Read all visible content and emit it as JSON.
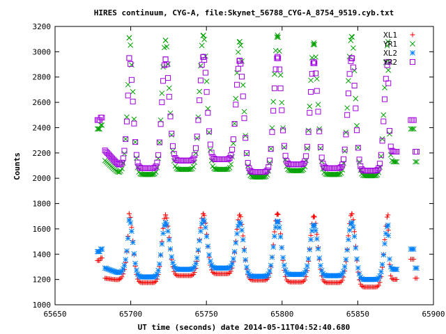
{
  "chart_data": {
    "type": "scatter",
    "title": "HIRES continuum, CYG-A, file:Skynet_56788_CYG-A_8754_9519.cyb.txt",
    "xlabel": "UT time (seconds) date 2014-05-11T04:52:40.680",
    "ylabel": "Counts",
    "xlim": [
      65650,
      65900
    ],
    "ylim": [
      1000,
      3200
    ],
    "xticks": [
      65650,
      65700,
      65750,
      65800,
      65850,
      65900
    ],
    "yticks": [
      1000,
      1200,
      1400,
      1600,
      1800,
      2000,
      2200,
      2400,
      2600,
      2800,
      3000,
      3200
    ],
    "grid": false,
    "legend_position": "top-right",
    "scan_x_range": [
      65683,
      65876
    ],
    "scan_peaks_x": [
      65699,
      65723,
      65748,
      65772,
      65797,
      65821,
      65846,
      65870
    ],
    "cal_before_x": [
      65678,
      65681
    ],
    "cal_after_x": [
      65885,
      65889
    ],
    "series": [
      {
        "name": "XL1",
        "color": "#ff0000",
        "marker": "plus",
        "peaks": [
          1720,
          1710,
          1720,
          1710,
          1720,
          1700,
          1720,
          1710
        ],
        "troughs": [
          1190,
          1175,
          1230,
          1245,
          1195,
          1180,
          1175,
          1140
        ],
        "scan_start": 1210,
        "scan_end": 1200,
        "cal_before": [
          1350,
          1370
        ],
        "cal_after": [
          1360,
          1210
        ]
      },
      {
        "name": "YR1",
        "color": "#00a000",
        "marker": "cross",
        "peaks": [
          3110,
          3090,
          3130,
          3080,
          3130,
          3070,
          3120,
          3080
        ],
        "troughs": [
          2010,
          2030,
          2070,
          2070,
          2010,
          2060,
          2030,
          2020
        ],
        "scan_start": 2140,
        "scan_end": 2130,
        "cal_before": [
          2390,
          2420
        ],
        "cal_after": [
          2390,
          2130
        ]
      },
      {
        "name": "XL2",
        "color": "#0080ff",
        "marker": "star",
        "peaks": [
          1670,
          1650,
          1670,
          1650,
          1660,
          1630,
          1650,
          1630
        ],
        "troughs": [
          1240,
          1220,
          1280,
          1290,
          1225,
          1240,
          1230,
          1200
        ],
        "scan_start": 1290,
        "scan_end": 1280,
        "cal_before": [
          1420,
          1440
        ],
        "cal_after": [
          1440,
          1290
        ]
      },
      {
        "name": "YR2",
        "color": "#a000e0",
        "marker": "square",
        "peaks": [
          2950,
          2940,
          2960,
          2930,
          2960,
          2920,
          2950,
          2920
        ],
        "troughs": [
          2070,
          2080,
          2140,
          2150,
          2050,
          2110,
          2080,
          2060
        ],
        "scan_start": 2220,
        "scan_end": 2210,
        "cal_before": [
          2460,
          2480
        ],
        "cal_after": [
          2460,
          2210
        ]
      }
    ]
  }
}
